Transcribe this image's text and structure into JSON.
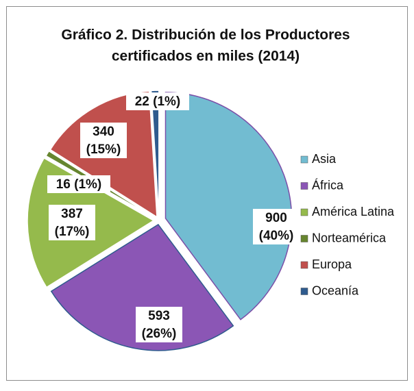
{
  "chart_data": {
    "type": "pie",
    "title": [
      "Gráfico 2. Distribución  de los Productores",
      "certificados en miles (2014)"
    ],
    "categories": [
      "Asia",
      "África",
      "América Latina",
      "Norteamérica",
      "Europa",
      "Oceanía"
    ],
    "values": [
      900,
      593,
      387,
      16,
      340,
      22
    ],
    "value_labels": [
      [
        "900",
        "(40%)"
      ],
      [
        "593",
        "(26%)"
      ],
      [
        "387",
        "(17%)"
      ],
      [
        "16  (1%)"
      ],
      [
        "340",
        "(15%)"
      ],
      [
        "22  (1%)"
      ]
    ],
    "colors": [
      "#72bcd1",
      "#8b56b5",
      "#95ba4c",
      "#66852f",
      "#c0504d",
      "#2f5b8e"
    ],
    "legend": "right"
  }
}
